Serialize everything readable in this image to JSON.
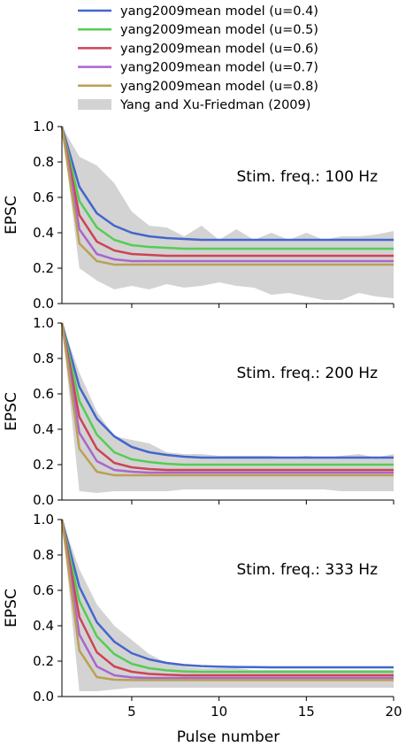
{
  "chart_data": {
    "type": "line",
    "xlabel": "Pulse number",
    "x": [
      1,
      2,
      3,
      4,
      5,
      6,
      7,
      8,
      9,
      10,
      11,
      12,
      13,
      14,
      15,
      16,
      17,
      18,
      19,
      20
    ],
    "xlim": [
      1,
      20
    ],
    "xticks": [
      5,
      10,
      15,
      20
    ],
    "legend": {
      "placement": "top",
      "entries": [
        {
          "label": "yang2009mean model (u=0.4)",
          "color": "#4466cc"
        },
        {
          "label": "yang2009mean model (u=0.5)",
          "color": "#55cc55"
        },
        {
          "label": "yang2009mean model (u=0.6)",
          "color": "#cc4455"
        },
        {
          "label": "yang2009mean model (u=0.7)",
          "color": "#aa66cc"
        },
        {
          "label": "yang2009mean model (u=0.8)",
          "color": "#bba055"
        },
        {
          "label": "Yang and Xu-Friedman (2009)",
          "color": "#d3d3d3"
        }
      ]
    },
    "panels": [
      {
        "annotation": "Stim. freq.: 100 Hz",
        "ylabel": "EPSC",
        "ylim": [
          0,
          1
        ],
        "yticks": [
          "0.0",
          "0.2",
          "0.4",
          "0.6",
          "0.8",
          "1.0"
        ],
        "band_upper": [
          1.0,
          0.83,
          0.78,
          0.68,
          0.52,
          0.44,
          0.43,
          0.38,
          0.44,
          0.36,
          0.42,
          0.36,
          0.4,
          0.36,
          0.4,
          0.36,
          0.38,
          0.38,
          0.39,
          0.41
        ],
        "band_lower": [
          1.0,
          0.2,
          0.13,
          0.08,
          0.1,
          0.08,
          0.11,
          0.09,
          0.1,
          0.12,
          0.1,
          0.09,
          0.05,
          0.06,
          0.04,
          0.02,
          0.02,
          0.06,
          0.04,
          0.03
        ],
        "series": [
          {
            "name": "yang2009mean model (u=0.4)",
            "values": [
              1.0,
              0.66,
              0.51,
              0.44,
              0.4,
              0.38,
              0.37,
              0.365,
              0.36,
              0.36,
              0.36,
              0.36,
              0.36,
              0.36,
              0.36,
              0.36,
              0.36,
              0.36,
              0.36,
              0.36
            ]
          },
          {
            "name": "yang2009mean model (u=0.5)",
            "values": [
              1.0,
              0.58,
              0.43,
              0.36,
              0.33,
              0.32,
              0.315,
              0.31,
              0.31,
              0.31,
              0.31,
              0.31,
              0.31,
              0.31,
              0.31,
              0.31,
              0.31,
              0.31,
              0.31,
              0.31
            ]
          },
          {
            "name": "yang2009mean model (u=0.6)",
            "values": [
              1.0,
              0.5,
              0.35,
              0.3,
              0.28,
              0.275,
              0.27,
              0.27,
              0.27,
              0.27,
              0.27,
              0.27,
              0.27,
              0.27,
              0.27,
              0.27,
              0.27,
              0.27,
              0.27,
              0.27
            ]
          },
          {
            "name": "yang2009mean model (u=0.7)",
            "values": [
              1.0,
              0.42,
              0.28,
              0.25,
              0.24,
              0.24,
              0.24,
              0.24,
              0.24,
              0.24,
              0.24,
              0.24,
              0.24,
              0.24,
              0.24,
              0.24,
              0.24,
              0.24,
              0.24,
              0.24
            ]
          },
          {
            "name": "yang2009mean model (u=0.8)",
            "values": [
              1.0,
              0.34,
              0.24,
              0.22,
              0.22,
              0.22,
              0.22,
              0.22,
              0.22,
              0.22,
              0.22,
              0.22,
              0.22,
              0.22,
              0.22,
              0.22,
              0.22,
              0.22,
              0.22,
              0.22
            ]
          }
        ]
      },
      {
        "annotation": "Stim. freq.: 200 Hz",
        "ylabel": "EPSC",
        "ylim": [
          0,
          1
        ],
        "yticks": [
          "0.0",
          "0.2",
          "0.4",
          "0.6",
          "0.8",
          "1.0"
        ],
        "band_upper": [
          1.0,
          0.72,
          0.5,
          0.36,
          0.34,
          0.32,
          0.27,
          0.26,
          0.26,
          0.25,
          0.25,
          0.25,
          0.25,
          0.24,
          0.25,
          0.24,
          0.25,
          0.26,
          0.24,
          0.26
        ],
        "band_lower": [
          1.0,
          0.05,
          0.04,
          0.05,
          0.05,
          0.05,
          0.05,
          0.06,
          0.06,
          0.06,
          0.06,
          0.06,
          0.06,
          0.06,
          0.06,
          0.06,
          0.05,
          0.05,
          0.05,
          0.05
        ],
        "series": [
          {
            "name": "yang2009mean model (u=0.4)",
            "values": [
              1.0,
              0.64,
              0.46,
              0.36,
              0.3,
              0.27,
              0.255,
              0.245,
              0.24,
              0.24,
              0.24,
              0.24,
              0.24,
              0.24,
              0.24,
              0.24,
              0.24,
              0.24,
              0.24,
              0.24
            ]
          },
          {
            "name": "yang2009mean model (u=0.5)",
            "values": [
              1.0,
              0.56,
              0.37,
              0.27,
              0.23,
              0.215,
              0.205,
              0.2,
              0.2,
              0.2,
              0.2,
              0.2,
              0.2,
              0.2,
              0.2,
              0.2,
              0.2,
              0.2,
              0.2,
              0.2
            ]
          },
          {
            "name": "yang2009mean model (u=0.6)",
            "values": [
              1.0,
              0.47,
              0.29,
              0.21,
              0.185,
              0.175,
              0.17,
              0.17,
              0.17,
              0.17,
              0.17,
              0.17,
              0.17,
              0.17,
              0.17,
              0.17,
              0.17,
              0.17,
              0.17,
              0.17
            ]
          },
          {
            "name": "yang2009mean model (u=0.7)",
            "values": [
              1.0,
              0.38,
              0.22,
              0.17,
              0.16,
              0.155,
              0.155,
              0.155,
              0.155,
              0.155,
              0.155,
              0.155,
              0.155,
              0.155,
              0.155,
              0.155,
              0.155,
              0.155,
              0.155,
              0.155
            ]
          },
          {
            "name": "yang2009mean model (u=0.8)",
            "values": [
              1.0,
              0.29,
              0.16,
              0.14,
              0.14,
              0.14,
              0.14,
              0.14,
              0.14,
              0.14,
              0.14,
              0.14,
              0.14,
              0.14,
              0.14,
              0.14,
              0.14,
              0.14,
              0.14,
              0.14
            ]
          }
        ]
      },
      {
        "annotation": "Stim. freq.: 333 Hz",
        "ylabel": "EPSC",
        "ylim": [
          0,
          1
        ],
        "yticks": [
          "0.0",
          "0.2",
          "0.4",
          "0.6",
          "0.8",
          "1.0"
        ],
        "band_upper": [
          1.0,
          0.72,
          0.52,
          0.4,
          0.32,
          0.24,
          0.19,
          0.17,
          0.16,
          0.16,
          0.16,
          0.15,
          0.15,
          0.15,
          0.15,
          0.15,
          0.15,
          0.15,
          0.15,
          0.15
        ],
        "band_lower": [
          1.0,
          0.03,
          0.03,
          0.04,
          0.05,
          0.05,
          0.05,
          0.05,
          0.05,
          0.05,
          0.05,
          0.05,
          0.05,
          0.05,
          0.05,
          0.05,
          0.05,
          0.05,
          0.05,
          0.05
        ],
        "series": [
          {
            "name": "yang2009mean model (u=0.4)",
            "values": [
              1.0,
              0.62,
              0.42,
              0.31,
              0.245,
              0.21,
              0.19,
              0.178,
              0.172,
              0.169,
              0.167,
              0.166,
              0.165,
              0.165,
              0.165,
              0.165,
              0.165,
              0.165,
              0.165,
              0.165
            ]
          },
          {
            "name": "yang2009mean model (u=0.5)",
            "values": [
              1.0,
              0.54,
              0.34,
              0.24,
              0.185,
              0.16,
              0.148,
              0.142,
              0.14,
              0.14,
              0.14,
              0.14,
              0.14,
              0.14,
              0.14,
              0.14,
              0.14,
              0.14,
              0.14,
              0.14
            ]
          },
          {
            "name": "yang2009mean model (u=0.6)",
            "values": [
              1.0,
              0.45,
              0.25,
              0.17,
              0.14,
              0.128,
              0.123,
              0.12,
              0.12,
              0.12,
              0.12,
              0.12,
              0.12,
              0.12,
              0.12,
              0.12,
              0.12,
              0.12,
              0.12,
              0.12
            ]
          },
          {
            "name": "yang2009mean model (u=0.7)",
            "values": [
              1.0,
              0.35,
              0.17,
              0.12,
              0.108,
              0.105,
              0.105,
              0.105,
              0.105,
              0.105,
              0.105,
              0.105,
              0.105,
              0.105,
              0.105,
              0.105,
              0.105,
              0.105,
              0.105,
              0.105
            ]
          },
          {
            "name": "yang2009mean model (u=0.8)",
            "values": [
              1.0,
              0.26,
              0.11,
              0.095,
              0.093,
              0.093,
              0.093,
              0.093,
              0.093,
              0.093,
              0.093,
              0.093,
              0.093,
              0.093,
              0.093,
              0.093,
              0.093,
              0.093,
              0.093,
              0.093
            ]
          }
        ]
      }
    ]
  }
}
